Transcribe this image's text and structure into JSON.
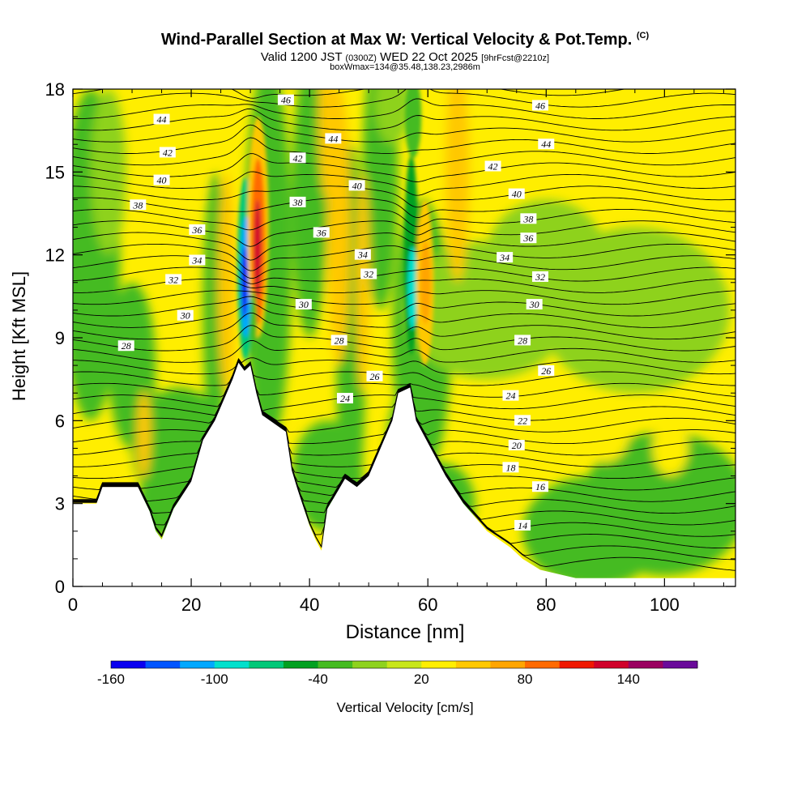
{
  "header": {
    "title": "Wind-Parallel Section at Max W: Vertical Velocity & Pot.Temp.",
    "copyright": "(C)",
    "valid_prefix": "Valid 1200 JST",
    "valid_utc": "(0300Z)",
    "valid_date": "WED 22 Oct 2025",
    "forecast_info": "[9hrFcst@2210z]",
    "box_info": "boxWmax=134@35.48,138.23,2986m"
  },
  "chart_data": {
    "type": "heatmap",
    "title": "Wind-Parallel Section at Max W: Vertical Velocity & Pot.Temp.",
    "xlabel": "Distance [nm]",
    "ylabel": "Height [Kft MSL]",
    "xlim": [
      0,
      112
    ],
    "ylim": [
      0,
      18
    ],
    "x_ticks": [
      0,
      20,
      40,
      60,
      80,
      100
    ],
    "y_ticks": [
      0,
      3,
      6,
      9,
      12,
      15,
      18
    ],
    "terrain_profile": [
      [
        0,
        3.0
      ],
      [
        4,
        3.0
      ],
      [
        5,
        3.6
      ],
      [
        11,
        3.6
      ],
      [
        13,
        2.7
      ],
      [
        14,
        2.0
      ],
      [
        15,
        1.7
      ],
      [
        17,
        2.8
      ],
      [
        20,
        3.8
      ],
      [
        22,
        5.3
      ],
      [
        24,
        6.0
      ],
      [
        27,
        7.5
      ],
      [
        28,
        8.1
      ],
      [
        29,
        7.8
      ],
      [
        30,
        8.0
      ],
      [
        31,
        7.0
      ],
      [
        32,
        6.2
      ],
      [
        36,
        5.6
      ],
      [
        37,
        4.2
      ],
      [
        38,
        3.5
      ],
      [
        40,
        2.2
      ],
      [
        41,
        1.7
      ],
      [
        42,
        1.3
      ],
      [
        43,
        2.8
      ],
      [
        46,
        3.9
      ],
      [
        48,
        3.6
      ],
      [
        50,
        4.0
      ],
      [
        54,
        6.0
      ],
      [
        55,
        7.0
      ],
      [
        57,
        7.2
      ],
      [
        58,
        6.0
      ],
      [
        60,
        5.2
      ],
      [
        63,
        4.0
      ],
      [
        66,
        3.0
      ],
      [
        70,
        2.0
      ],
      [
        74,
        1.4
      ],
      [
        76,
        1.0
      ],
      [
        79,
        0.6
      ],
      [
        85,
        0.3
      ],
      [
        112,
        0.3
      ]
    ],
    "updrafts": [
      {
        "x": 31,
        "z_bottom": 8,
        "z_top": 17,
        "peak_cm_s": 130
      },
      {
        "x": 59,
        "z_bottom": 7,
        "z_top": 15,
        "peak_cm_s": 60
      }
    ],
    "downdrafts": [
      {
        "x": 29,
        "z_bottom": 8,
        "z_top": 15,
        "peak_cm_s": -150
      },
      {
        "x": 57,
        "z_bottom": 7,
        "z_top": 15,
        "peak_cm_s": -90
      }
    ],
    "theta_contour_labels": [
      {
        "value": "46",
        "x": 36,
        "z": 17.6
      },
      {
        "value": "44",
        "x": 15,
        "z": 16.9
      },
      {
        "value": "44",
        "x": 44,
        "z": 16.2
      },
      {
        "value": "46",
        "x": 79,
        "z": 17.4
      },
      {
        "value": "44",
        "x": 80,
        "z": 16.0
      },
      {
        "value": "42",
        "x": 16,
        "z": 15.7
      },
      {
        "value": "42",
        "x": 38,
        "z": 15.5
      },
      {
        "value": "42",
        "x": 71,
        "z": 15.2
      },
      {
        "value": "40",
        "x": 15,
        "z": 14.7
      },
      {
        "value": "40",
        "x": 48,
        "z": 14.5
      },
      {
        "value": "40",
        "x": 75,
        "z": 14.2
      },
      {
        "value": "38",
        "x": 11,
        "z": 13.8
      },
      {
        "value": "38",
        "x": 38,
        "z": 13.9
      },
      {
        "value": "38",
        "x": 77,
        "z": 13.3
      },
      {
        "value": "36",
        "x": 21,
        "z": 12.9
      },
      {
        "value": "36",
        "x": 42,
        "z": 12.8
      },
      {
        "value": "36",
        "x": 77,
        "z": 12.6
      },
      {
        "value": "34",
        "x": 21,
        "z": 11.8
      },
      {
        "value": "34",
        "x": 49,
        "z": 12.0
      },
      {
        "value": "34",
        "x": 73,
        "z": 11.9
      },
      {
        "value": "32",
        "x": 17,
        "z": 11.1
      },
      {
        "value": "32",
        "x": 50,
        "z": 11.3
      },
      {
        "value": "32",
        "x": 79,
        "z": 11.2
      },
      {
        "value": "30",
        "x": 19,
        "z": 9.8
      },
      {
        "value": "30",
        "x": 39,
        "z": 10.2
      },
      {
        "value": "30",
        "x": 78,
        "z": 10.2
      },
      {
        "value": "28",
        "x": 9,
        "z": 8.7
      },
      {
        "value": "28",
        "x": 45,
        "z": 8.9
      },
      {
        "value": "28",
        "x": 76,
        "z": 8.9
      },
      {
        "value": "26",
        "x": 51,
        "z": 7.6
      },
      {
        "value": "26",
        "x": 80,
        "z": 7.8
      },
      {
        "value": "24",
        "x": 46,
        "z": 6.8
      },
      {
        "value": "24",
        "x": 74,
        "z": 6.9
      },
      {
        "value": "22",
        "x": 76,
        "z": 6.0
      },
      {
        "value": "20",
        "x": 75,
        "z": 5.1
      },
      {
        "value": "18",
        "x": 74,
        "z": 4.3
      },
      {
        "value": "16",
        "x": 79,
        "z": 3.6
      },
      {
        "value": "14",
        "x": 76,
        "z": 2.2
      }
    ],
    "colorbar": {
      "label": "Vertical Velocity [cm/s]",
      "min": -160,
      "max": 160,
      "step": 20,
      "tick_labels": [
        "-160",
        "-100",
        "-40",
        "20",
        "80",
        "140"
      ],
      "colors": [
        "#0a00f0",
        "#0055ff",
        "#00a8ff",
        "#00e0cc",
        "#00c878",
        "#00a020",
        "#44bb20",
        "#8ed21e",
        "#c8e61a",
        "#ffee00",
        "#ffc800",
        "#ffa500",
        "#ff6a00",
        "#f01800",
        "#d0002a",
        "#9a0060",
        "#6a0a9a"
      ]
    }
  }
}
